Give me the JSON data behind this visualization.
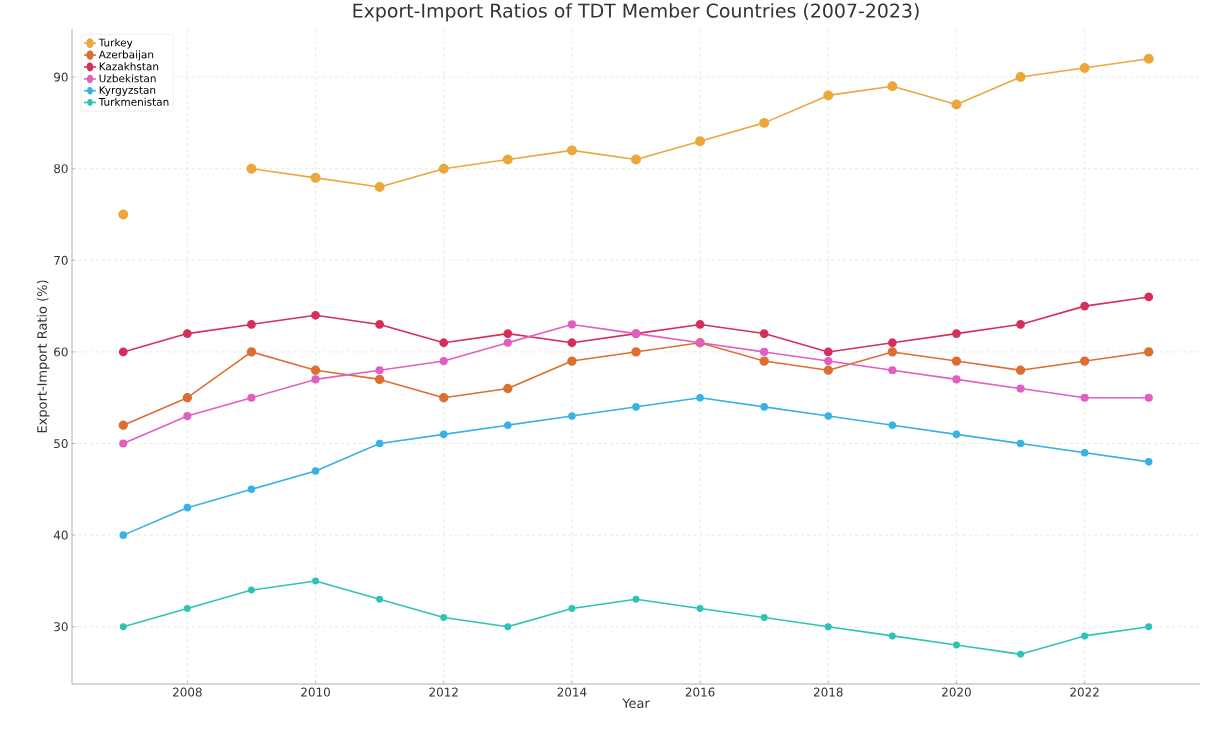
{
  "chart_data": {
    "type": "line",
    "title": "Export-Import Ratios of TDT Member Countries (2007-2023)",
    "xlabel": "Year",
    "ylabel": "Export-Import Ratio (%)",
    "x": [
      2007,
      2008,
      2009,
      2010,
      2011,
      2012,
      2013,
      2014,
      2015,
      2016,
      2017,
      2018,
      2019,
      2020,
      2021,
      2022,
      2023
    ],
    "series": [
      {
        "name": "Turkey",
        "color": "#eca73c",
        "values": [
          75,
          null,
          80,
          79,
          78,
          80,
          81,
          82,
          81,
          83,
          85,
          88,
          89,
          87,
          90,
          91,
          92
        ]
      },
      {
        "name": "Azerbaijan",
        "color": "#dd6e31",
        "values": [
          52,
          55,
          60,
          58,
          57,
          55,
          56,
          59,
          60,
          61,
          59,
          58,
          60,
          59,
          58,
          59,
          60
        ]
      },
      {
        "name": "Kazakhstan",
        "color": "#d42f5c",
        "values": [
          60,
          62,
          63,
          64,
          63,
          61,
          62,
          61,
          62,
          63,
          62,
          60,
          61,
          62,
          63,
          65,
          66
        ]
      },
      {
        "name": "Uzbekistan",
        "color": "#e05fc0",
        "values": [
          50,
          53,
          55,
          57,
          58,
          59,
          61,
          63,
          62,
          61,
          60,
          59,
          58,
          57,
          56,
          55,
          55
        ]
      },
      {
        "name": "Kyrgyzstan",
        "color": "#39b2e3",
        "values": [
          40,
          43,
          45,
          47,
          50,
          51,
          52,
          53,
          54,
          55,
          54,
          53,
          52,
          51,
          50,
          49,
          48
        ]
      },
      {
        "name": "Turkmenistan",
        "color": "#2ec4b4",
        "values": [
          30,
          32,
          34,
          35,
          33,
          31,
          30,
          32,
          33,
          32,
          31,
          30,
          29,
          28,
          27,
          29,
          30
        ]
      }
    ],
    "xlim": [
      2006.2,
      2023.8
    ],
    "ylim": [
      23.75,
      95.25
    ],
    "xticks": [
      2008,
      2010,
      2012,
      2014,
      2016,
      2018,
      2020,
      2022
    ],
    "yticks": [
      30,
      40,
      50,
      60,
      70,
      80,
      90
    ],
    "grid": true,
    "legend": "top left",
    "marker": "circle",
    "line_style": "solid"
  }
}
